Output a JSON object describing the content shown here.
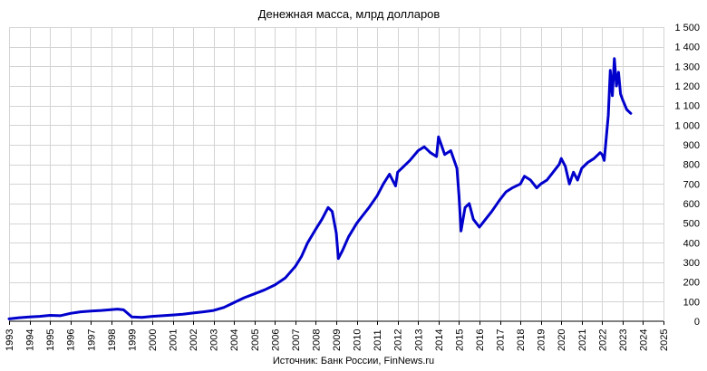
{
  "chart_data": {
    "type": "line",
    "title": "Денежная масса, млрд долларов",
    "xlabel": "",
    "ylabel": "",
    "source": "Источник: Банк России, FinNews.ru",
    "xlim": [
      1993,
      2025
    ],
    "ylim": [
      0,
      1500
    ],
    "x_ticks": [
      "1993",
      "1994",
      "1995",
      "1996",
      "1997",
      "1998",
      "1999",
      "2000",
      "2001",
      "2002",
      "2003",
      "2004",
      "2005",
      "2006",
      "2007",
      "2008",
      "2009",
      "2010",
      "2011",
      "2012",
      "2013",
      "2014",
      "2015",
      "2016",
      "2017",
      "2018",
      "2019",
      "2020",
      "2021",
      "2022",
      "2023",
      "2024",
      "2025"
    ],
    "y_ticks": [
      "0",
      "100",
      "200",
      "300",
      "400",
      "500",
      "600",
      "700",
      "800",
      "900",
      "1 000",
      "1 100",
      "1 200",
      "1 300",
      "1 400",
      "1 500"
    ],
    "grid": true,
    "legend": "none",
    "line_color": "#0000cc",
    "series": [
      {
        "x": [
          1993.0,
          1993.5,
          1994.0,
          1994.5,
          1995.0,
          1995.5,
          1996.0,
          1996.5,
          1997.0,
          1997.5,
          1997.9,
          1998.3,
          1998.6,
          1998.8,
          1999.0,
          1999.5,
          2000.0,
          2000.5,
          2001.0,
          2001.5,
          2002.0,
          2002.5,
          2003.0,
          2003.5,
          2004.0,
          2004.5,
          2005.0,
          2005.5,
          2006.0,
          2006.5,
          2007.0,
          2007.3,
          2007.6,
          2008.0,
          2008.3,
          2008.6,
          2008.8,
          2009.0,
          2009.1,
          2009.3,
          2009.6,
          2010.0,
          2010.3,
          2010.6,
          2011.0,
          2011.3,
          2011.6,
          2011.9,
          2012.0,
          2012.3,
          2012.6,
          2013.0,
          2013.3,
          2013.6,
          2013.9,
          2014.0,
          2014.3,
          2014.6,
          2014.9,
          2015.0,
          2015.1,
          2015.3,
          2015.5,
          2015.7,
          2016.0,
          2016.3,
          2016.6,
          2017.0,
          2017.3,
          2017.6,
          2018.0,
          2018.2,
          2018.5,
          2018.8,
          2019.0,
          2019.3,
          2019.6,
          2019.9,
          2020.0,
          2020.2,
          2020.4,
          2020.6,
          2020.8,
          2021.0,
          2021.3,
          2021.6,
          2021.9,
          2022.0,
          2022.1,
          2022.3,
          2022.4,
          2022.5,
          2022.6,
          2022.7,
          2022.8,
          2022.9,
          2023.0,
          2023.2,
          2023.4
        ],
        "y": [
          12,
          18,
          22,
          25,
          30,
          28,
          40,
          48,
          52,
          55,
          58,
          62,
          58,
          40,
          22,
          20,
          25,
          28,
          32,
          36,
          42,
          48,
          55,
          70,
          95,
          120,
          140,
          160,
          185,
          220,
          280,
          330,
          400,
          470,
          520,
          580,
          560,
          450,
          320,
          360,
          430,
          500,
          540,
          580,
          640,
          700,
          750,
          690,
          760,
          790,
          820,
          870,
          890,
          860,
          840,
          940,
          850,
          870,
          780,
          640,
          460,
          580,
          600,
          520,
          480,
          520,
          560,
          620,
          660,
          680,
          700,
          740,
          720,
          680,
          700,
          720,
          760,
          800,
          830,
          790,
          700,
          760,
          720,
          780,
          810,
          830,
          860,
          850,
          820,
          1050,
          1280,
          1150,
          1340,
          1200,
          1270,
          1160,
          1130,
          1080,
          1060
        ]
      }
    ]
  }
}
